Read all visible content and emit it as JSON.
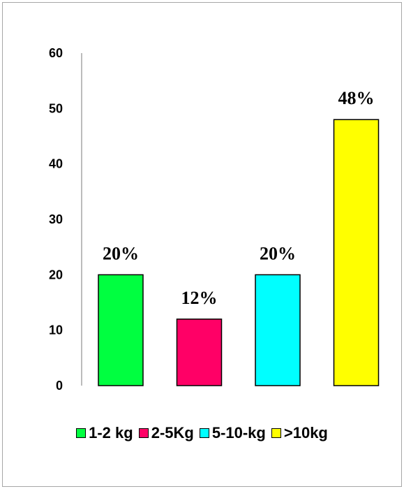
{
  "chart_data": {
    "type": "bar",
    "categories": [
      "1-2 kg",
      "2-5Kg",
      "5-10-kg",
      ">10kg"
    ],
    "values": [
      20,
      12,
      20,
      48
    ],
    "data_labels": [
      "20%",
      "12%",
      "20%",
      "48%"
    ],
    "colors": [
      "#00ff40",
      "#ff0066",
      "#00ffff",
      "#ffff00"
    ],
    "ylim": [
      0,
      60
    ],
    "yticks": [
      "0",
      "10",
      "20",
      "30",
      "40",
      "50",
      "60"
    ],
    "grid": false,
    "legend": "bottom"
  }
}
